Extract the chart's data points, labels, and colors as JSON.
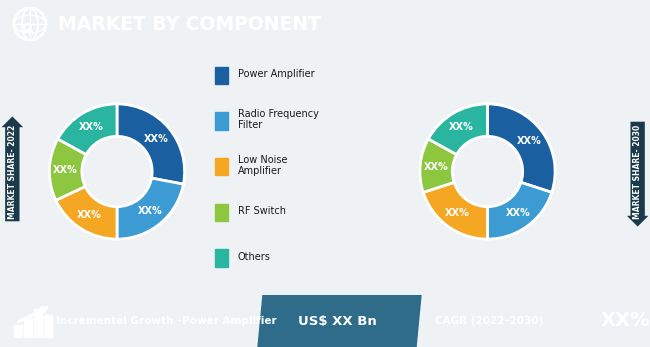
{
  "title": "MARKET BY COMPONENT",
  "header_bg": "#1b3a4b",
  "header_text_color": "#ffffff",
  "chart_bg": "#eef2f4",
  "footer_bg_dark": "#1b3a4b",
  "footer_bg_mid": "#2e6c8a",
  "pie1_label": "MARKET SHARE- 2022",
  "pie2_label": "MARKET SHARE- 2030",
  "legend_items": [
    {
      "label": "Power Amplifier",
      "color": "#1a5fa0"
    },
    {
      "label": "Radio Frequency\nFilter",
      "color": "#3d9bd4"
    },
    {
      "label": "Low Noise\nAmplifier",
      "color": "#f5a623"
    },
    {
      "label": "RF Switch",
      "color": "#8dc63f"
    },
    {
      "label": "Others",
      "color": "#2ab5a0"
    }
  ],
  "pie1_values": [
    28,
    22,
    18,
    15,
    17
  ],
  "pie2_values": [
    30,
    20,
    20,
    13,
    17
  ],
  "slice_colors": [
    "#1a5fa0",
    "#3d9bd4",
    "#f5a623",
    "#8dc63f",
    "#2ab5a0"
  ],
  "slice_label": "XX%",
  "footer_text1": "Incremental Growth –Power Amplifier",
  "footer_text2": "US$ XX Bn",
  "footer_text3": "CAGR (2022–2030)",
  "footer_text3b": "XX%",
  "donut_hole_ratio": 0.52,
  "side_label_color": "#1b3a4b"
}
